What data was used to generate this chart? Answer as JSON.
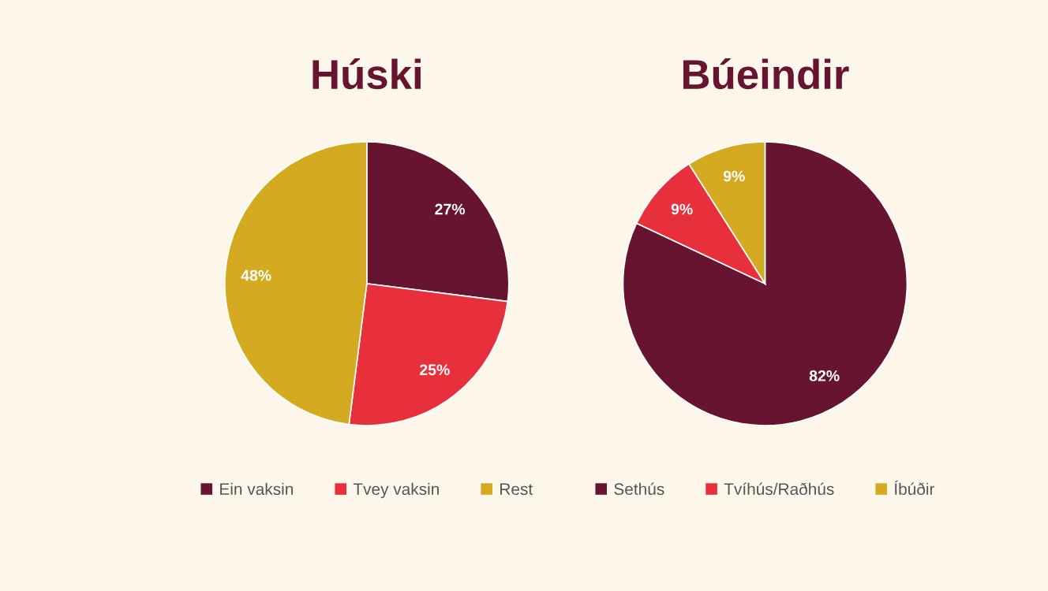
{
  "chart_data": [
    {
      "type": "pie",
      "title": "Húski",
      "categories": [
        "Ein vaksin",
        "Tvey vaksin",
        "Rest"
      ],
      "values": [
        27,
        25,
        48
      ],
      "value_labels": [
        "27%",
        "25%",
        "48%"
      ],
      "colors": [
        "#661430",
        "#e8303c",
        "#d4aa20"
      ],
      "legend": "bottom"
    },
    {
      "type": "pie",
      "title": "Búeindir",
      "categories": [
        "Sethús",
        "Tvíhús/Raðhús",
        "Íbúðir"
      ],
      "values": [
        82,
        9,
        9
      ],
      "value_labels": [
        "82%",
        "9%",
        "9%"
      ],
      "colors": [
        "#661430",
        "#e8303c",
        "#d4aa20"
      ],
      "legend": "bottom"
    }
  ]
}
